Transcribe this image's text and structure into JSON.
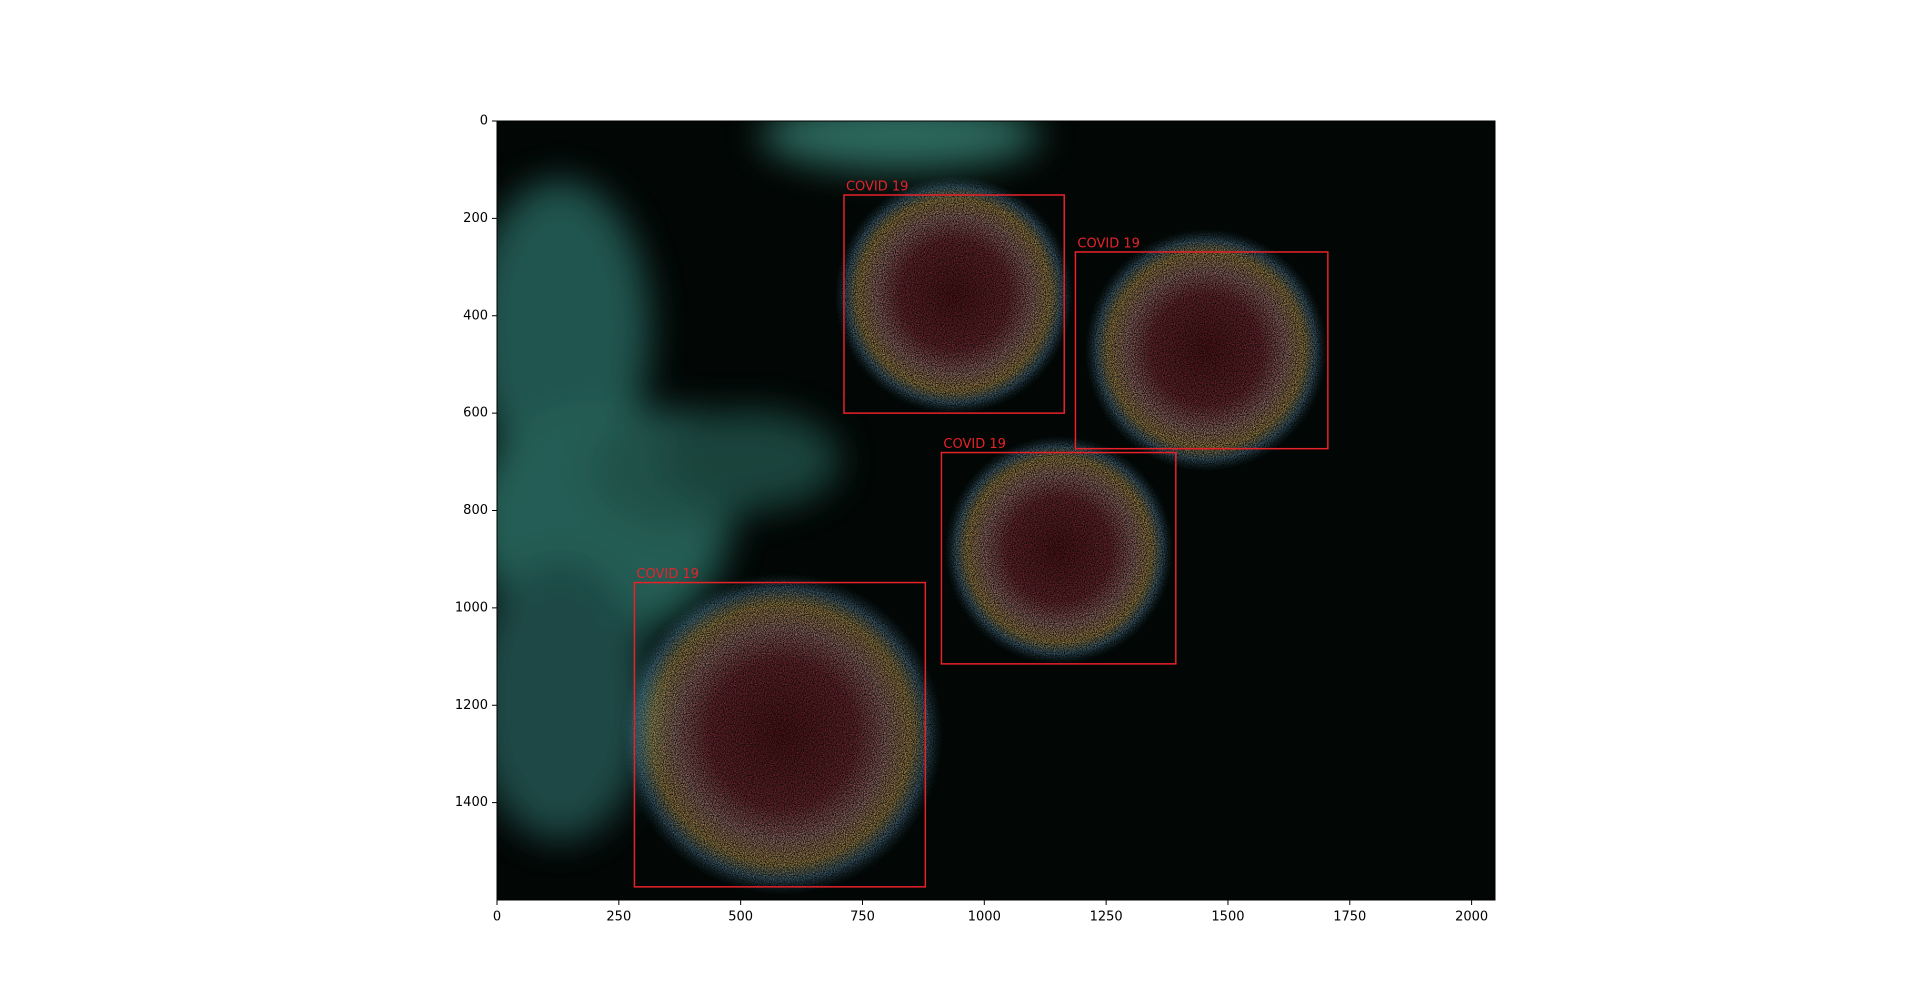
{
  "chart_data": {
    "type": "image",
    "xlim": [
      0,
      2048
    ],
    "ylim": [
      1600,
      0
    ],
    "xticks": [
      0,
      250,
      500,
      750,
      1000,
      1250,
      1500,
      1750,
      2000
    ],
    "yticks": [
      0,
      200,
      400,
      600,
      800,
      1000,
      1200,
      1400
    ],
    "color": "#e8222a",
    "boxes": [
      {
        "label": "COVID 19",
        "x0": 712,
        "y0": 152,
        "x1": 1164,
        "y1": 600
      },
      {
        "label": "COVID 19",
        "x0": 1187,
        "y0": 269,
        "x1": 1705,
        "y1": 673
      },
      {
        "label": "COVID 19",
        "x0": 912,
        "y0": 681,
        "x1": 1393,
        "y1": 1115
      },
      {
        "label": "COVID 19",
        "x0": 282,
        "y0": 948,
        "x1": 879,
        "y1": 1573
      }
    ]
  }
}
